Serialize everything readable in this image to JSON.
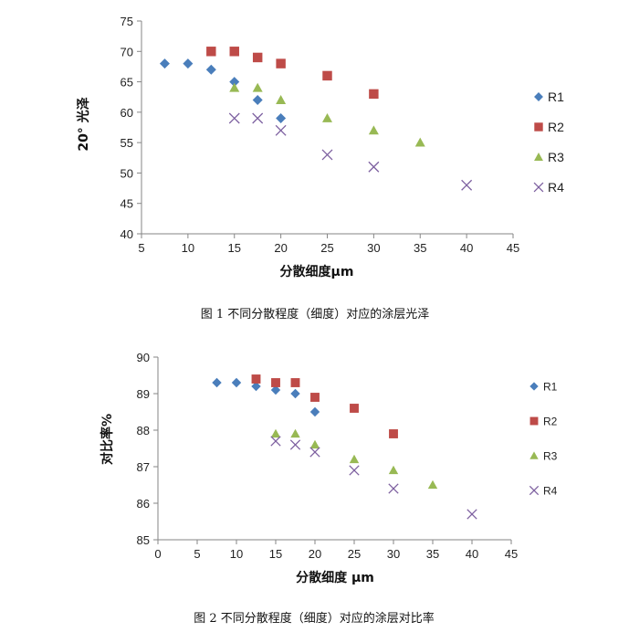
{
  "series_styles": [
    {
      "name": "R1",
      "marker": "diamond",
      "color": "#4A7EBB"
    },
    {
      "name": "R2",
      "marker": "square",
      "color": "#BE4B48"
    },
    {
      "name": "R3",
      "marker": "triangle",
      "color": "#98B954"
    },
    {
      "name": "R4",
      "marker": "cross",
      "color": "#7D60A0"
    }
  ],
  "chart_data": [
    {
      "type": "scatter",
      "title": "",
      "xlabel": "分散细度μm",
      "ylabel": "20° 光泽",
      "xlim": [
        5,
        45
      ],
      "ylim": [
        40,
        75
      ],
      "x_ticks": [
        5,
        10,
        15,
        20,
        25,
        30,
        35,
        40,
        45
      ],
      "y_ticks": [
        40,
        45,
        50,
        55,
        60,
        65,
        70,
        75
      ],
      "grid": false,
      "legend_placement": "right",
      "caption": "图 1  不同分散程度（细度）对应的涂层光泽",
      "series": [
        {
          "name": "R1",
          "points": [
            [
              7.5,
              68
            ],
            [
              10,
              68
            ],
            [
              12.5,
              67
            ],
            [
              15,
              65
            ],
            [
              17.5,
              62
            ],
            [
              20,
              59
            ]
          ]
        },
        {
          "name": "R2",
          "points": [
            [
              12.5,
              70
            ],
            [
              15,
              70
            ],
            [
              17.5,
              69
            ],
            [
              20,
              68
            ],
            [
              25,
              66
            ],
            [
              30,
              63
            ]
          ]
        },
        {
          "name": "R3",
          "points": [
            [
              15,
              64
            ],
            [
              17.5,
              64
            ],
            [
              20,
              62
            ],
            [
              25,
              59
            ],
            [
              30,
              57
            ],
            [
              35,
              55
            ]
          ]
        },
        {
          "name": "R4",
          "points": [
            [
              15,
              59
            ],
            [
              17.5,
              59
            ],
            [
              20,
              57
            ],
            [
              25,
              53
            ],
            [
              30,
              51
            ],
            [
              40,
              48
            ]
          ]
        }
      ]
    },
    {
      "type": "scatter",
      "title": "",
      "xlabel": "分散细度 μm",
      "ylabel": "对比率%",
      "xlim": [
        0,
        45
      ],
      "ylim": [
        85,
        90
      ],
      "x_ticks": [
        0,
        5,
        10,
        15,
        20,
        25,
        30,
        35,
        40,
        45
      ],
      "y_ticks": [
        85,
        86,
        87,
        88,
        89,
        90
      ],
      "grid": false,
      "legend_placement": "right",
      "caption": "图 2    不同分散程度（细度）对应的涂层对比率",
      "series": [
        {
          "name": "R1",
          "points": [
            [
              7.5,
              89.3
            ],
            [
              10,
              89.3
            ],
            [
              12.5,
              89.2
            ],
            [
              15,
              89.1
            ],
            [
              17.5,
              89.0
            ],
            [
              20,
              88.5
            ]
          ]
        },
        {
          "name": "R2",
          "points": [
            [
              12.5,
              89.4
            ],
            [
              15,
              89.3
            ],
            [
              17.5,
              89.3
            ],
            [
              20,
              88.9
            ],
            [
              25,
              88.6
            ],
            [
              30,
              87.9
            ]
          ]
        },
        {
          "name": "R3",
          "points": [
            [
              15,
              87.9
            ],
            [
              17.5,
              87.9
            ],
            [
              20,
              87.6
            ],
            [
              25,
              87.2
            ],
            [
              30,
              86.9
            ],
            [
              35,
              86.5
            ]
          ]
        },
        {
          "name": "R4",
          "points": [
            [
              15,
              87.7
            ],
            [
              17.5,
              87.6
            ],
            [
              20,
              87.4
            ],
            [
              25,
              86.9
            ],
            [
              30,
              86.4
            ],
            [
              40,
              85.7
            ]
          ]
        }
      ]
    }
  ]
}
